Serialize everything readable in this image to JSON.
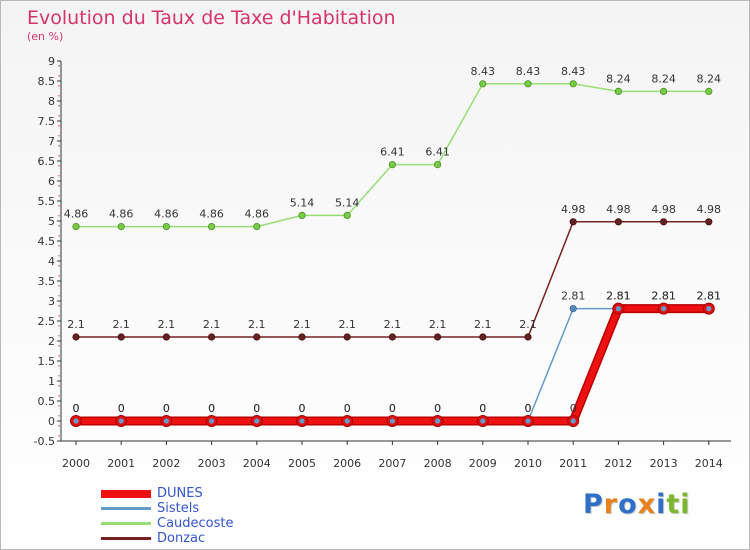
{
  "title": "Evolution du Taux de Taxe d'Habitation",
  "subtitle": "(en %)",
  "brand": {
    "letters": [
      "P",
      "r",
      "o",
      "x",
      "i",
      "t",
      "i"
    ],
    "colors": [
      "#2f6fc7",
      "#e8821e",
      "#2f6fc7",
      "#e8821e",
      "#2f6fc7",
      "#7cb82f",
      "#7cb82f"
    ]
  },
  "chart_data": {
    "type": "line",
    "categories": [
      "2000",
      "2001",
      "2002",
      "2003",
      "2004",
      "2005",
      "2006",
      "2007",
      "2008",
      "2009",
      "2010",
      "2011",
      "2012",
      "2013",
      "2014"
    ],
    "y_ticks": [
      "9",
      "8.5",
      "8",
      "7.5",
      "7",
      "6.5",
      "6",
      "5.5",
      "5",
      "4.5",
      "4",
      "3.5",
      "3",
      "2.5",
      "2",
      "1.5",
      "1",
      "0.5",
      "0",
      "-0.5"
    ],
    "ylim": [
      -0.5,
      9
    ],
    "grid": false,
    "legend_placement": "bottom-left",
    "series": [
      {
        "name": "DUNES",
        "color": "#ee1111",
        "values": [
          0,
          0,
          0,
          0,
          0,
          0,
          0,
          0,
          0,
          0,
          0,
          0,
          2.81,
          2.81,
          2.81
        ],
        "labels": [
          "0",
          "0",
          "0",
          "0",
          "0",
          "0",
          "0",
          "0",
          "0",
          "0",
          "0",
          "0",
          "2.81",
          "2.81",
          "2.81"
        ]
      },
      {
        "name": "Sistels",
        "color": "#6699cc",
        "values": [
          0,
          0,
          0,
          0,
          0,
          0,
          0,
          0,
          0,
          0,
          0,
          2.81,
          2.81,
          2.81,
          2.81
        ],
        "labels": [
          "0",
          "0",
          "0",
          "0",
          "0",
          "0",
          "0",
          "0",
          "0",
          "0",
          "0",
          "2.81",
          "2.81",
          "2.81",
          "2.81"
        ]
      },
      {
        "name": "Caudecoste",
        "color": "#99dd77",
        "values": [
          4.86,
          4.86,
          4.86,
          4.86,
          4.86,
          5.14,
          5.14,
          6.41,
          6.41,
          8.43,
          8.43,
          8.43,
          8.24,
          8.24,
          8.24
        ],
        "labels": [
          "4.86",
          "4.86",
          "4.86",
          "4.86",
          "4.86",
          "5.14",
          "5.14",
          "6.41",
          "6.41",
          "8.43",
          "8.43",
          "8.43",
          "8.24",
          "8.24",
          "8.24"
        ]
      },
      {
        "name": "Donzac",
        "color": "#772222",
        "values": [
          2.1,
          2.1,
          2.1,
          2.1,
          2.1,
          2.1,
          2.1,
          2.1,
          2.1,
          2.1,
          2.1,
          4.98,
          4.98,
          4.98,
          4.98
        ],
        "labels": [
          "2.1",
          "2.1",
          "2.1",
          "2.1",
          "2.1",
          "2.1",
          "2.1",
          "2.1",
          "2.1",
          "2.1",
          "2.1",
          "4.98",
          "4.98",
          "4.98",
          "4.98"
        ]
      }
    ]
  }
}
